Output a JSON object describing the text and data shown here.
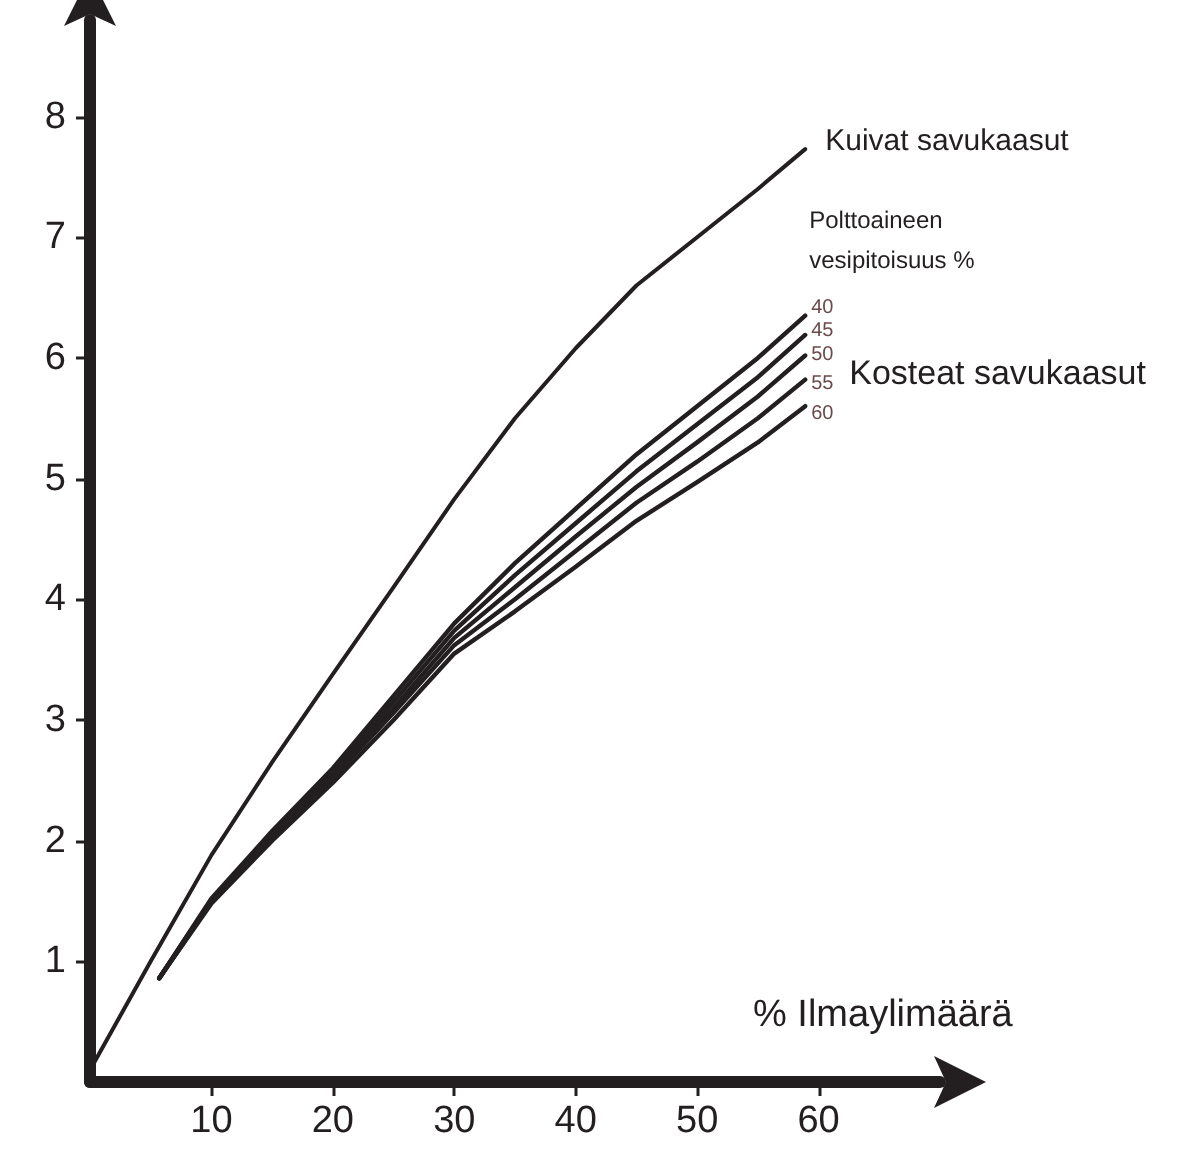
{
  "chart_data": {
    "type": "line",
    "xlabel": "% Ilmaylimäärä",
    "legend_title": "Polttoaineen vesipitoisuus %",
    "annotations": [
      "Kosteat savukaasut"
    ],
    "xlim": [
      0,
      70
    ],
    "ylim": [
      0,
      8.8
    ],
    "xticks": [
      10,
      20,
      30,
      40,
      50,
      60
    ],
    "yticks": [
      1,
      2,
      3,
      4,
      5,
      6,
      7,
      8
    ],
    "grid": false,
    "legend": false,
    "marker": "none",
    "line_style": "solid",
    "series": [
      {
        "name": "Kuivat savukaasut",
        "color": "#231f20",
        "x": [
          0,
          5,
          10,
          15,
          20,
          25,
          30,
          35,
          40,
          45,
          50,
          55,
          58.9
        ],
        "values": [
          0.1,
          1.0,
          1.88,
          2.65,
          3.38,
          4.1,
          4.83,
          5.5,
          6.08,
          6.6,
          7.0,
          7.4,
          7.73
        ]
      },
      {
        "name": "40",
        "color": "#231f20",
        "x": [
          5.7,
          10,
          15,
          20,
          25,
          30,
          35,
          40,
          45,
          50,
          55,
          58.9
        ],
        "values": [
          0.86,
          1.52,
          2.08,
          2.6,
          3.2,
          3.8,
          4.3,
          4.75,
          5.2,
          5.6,
          6.0,
          6.35
        ]
      },
      {
        "name": "45",
        "color": "#231f20",
        "x": [
          5.7,
          10,
          15,
          20,
          25,
          30,
          35,
          40,
          45,
          50,
          55,
          58.9
        ],
        "values": [
          0.86,
          1.51,
          2.06,
          2.57,
          3.15,
          3.74,
          4.2,
          4.63,
          5.06,
          5.45,
          5.84,
          6.19
        ]
      },
      {
        "name": "50",
        "color": "#231f20",
        "x": [
          5.7,
          10,
          15,
          20,
          25,
          30,
          35,
          40,
          45,
          50,
          55,
          58.9
        ],
        "values": [
          0.86,
          1.5,
          2.04,
          2.55,
          3.1,
          3.68,
          4.1,
          4.52,
          4.93,
          5.3,
          5.68,
          6.02
        ]
      },
      {
        "name": "55",
        "color": "#231f20",
        "x": [
          5.7,
          10,
          15,
          20,
          25,
          30,
          35,
          40,
          45,
          50,
          55,
          58.9
        ],
        "values": [
          0.86,
          1.49,
          2.02,
          2.52,
          3.06,
          3.62,
          4.0,
          4.4,
          4.8,
          5.14,
          5.5,
          5.82
        ]
      },
      {
        "name": "60",
        "color": "#231f20",
        "x": [
          5.7,
          10,
          15,
          20,
          25,
          30,
          35,
          40,
          45,
          50,
          55,
          58.9
        ],
        "values": [
          0.86,
          1.48,
          2.0,
          2.48,
          3.0,
          3.55,
          3.9,
          4.27,
          4.65,
          4.97,
          5.3,
          5.6
        ]
      }
    ]
  }
}
